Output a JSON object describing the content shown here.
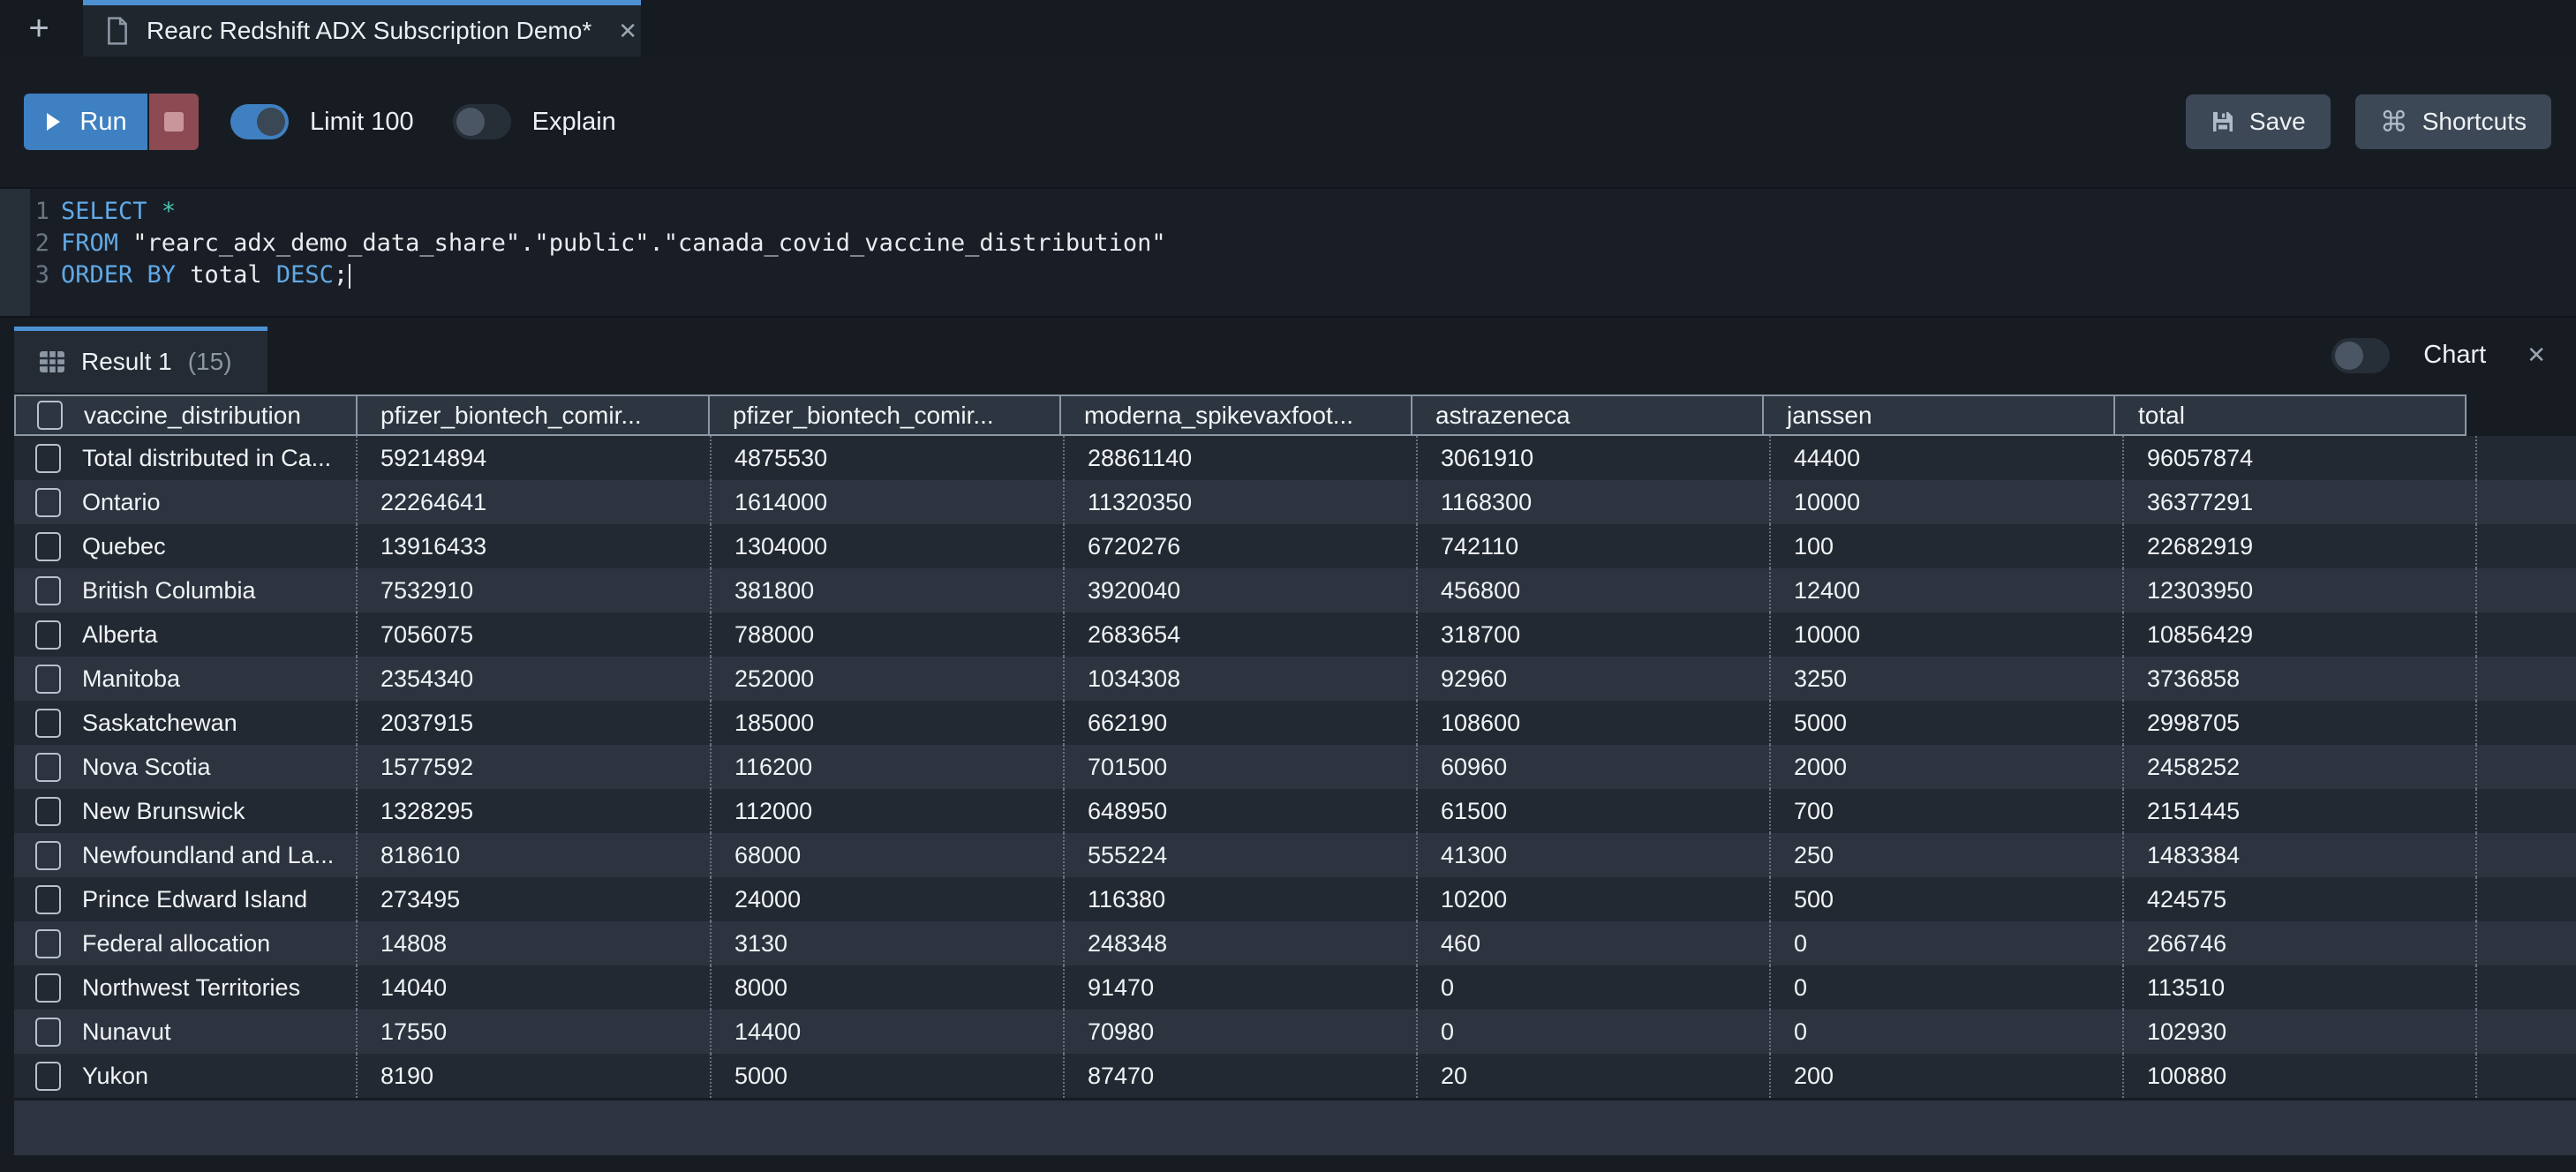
{
  "tab_bar": {
    "new_tab_icon": "+",
    "tab": {
      "title": "Rearc Redshift ADX Subscription Demo*",
      "close": "✕"
    }
  },
  "toolbar": {
    "run_label": "Run",
    "limit_label": "Limit 100",
    "explain_label": "Explain",
    "save_label": "Save",
    "shortcuts_label": "Shortcuts",
    "limit_on": true,
    "explain_on": false
  },
  "editor": {
    "lines": [
      {
        "number": "1",
        "segments": [
          {
            "type": "keyword",
            "text": "SELECT"
          },
          {
            "type": "plain",
            "text": " "
          },
          {
            "type": "operator",
            "text": "*"
          }
        ],
        "cursor": false
      },
      {
        "number": "2",
        "segments": [
          {
            "type": "keyword",
            "text": "FROM"
          },
          {
            "type": "plain",
            "text": " \"rearc_adx_demo_data_share\".\"public\".\"canada_covid_vaccine_distribution\""
          }
        ],
        "cursor": false
      },
      {
        "number": "3",
        "segments": [
          {
            "type": "keyword",
            "text": "ORDER BY"
          },
          {
            "type": "plain",
            "text": " total "
          },
          {
            "type": "keyword",
            "text": "DESC"
          },
          {
            "type": "plain",
            "text": ";"
          }
        ],
        "cursor": true
      }
    ]
  },
  "results": {
    "tab_label": "Result 1",
    "tab_count": "(15)",
    "chart_label": "Chart",
    "chart_on": false,
    "close_icon": "✕",
    "table": {
      "columns": [
        "vaccine_distribution",
        "pfizer_biontech_comir...",
        "pfizer_biontech_comir...",
        "moderna_spikevaxfoot...",
        "astrazeneca",
        "janssen",
        "total"
      ],
      "rows": [
        [
          "Total distributed in Ca...",
          "59214894",
          "4875530",
          "28861140",
          "3061910",
          "44400",
          "96057874"
        ],
        [
          "Ontario",
          "22264641",
          "1614000",
          "11320350",
          "1168300",
          "10000",
          "36377291"
        ],
        [
          "Quebec",
          "13916433",
          "1304000",
          "6720276",
          "742110",
          "100",
          "22682919"
        ],
        [
          "British Columbia",
          "7532910",
          "381800",
          "3920040",
          "456800",
          "12400",
          "12303950"
        ],
        [
          "Alberta",
          "7056075",
          "788000",
          "2683654",
          "318700",
          "10000",
          "10856429"
        ],
        [
          "Manitoba",
          "2354340",
          "252000",
          "1034308",
          "92960",
          "3250",
          "3736858"
        ],
        [
          "Saskatchewan",
          "2037915",
          "185000",
          "662190",
          "108600",
          "5000",
          "2998705"
        ],
        [
          "Nova Scotia",
          "1577592",
          "116200",
          "701500",
          "60960",
          "2000",
          "2458252"
        ],
        [
          "New Brunswick",
          "1328295",
          "112000",
          "648950",
          "61500",
          "700",
          "2151445"
        ],
        [
          "Newfoundland and La...",
          "818610",
          "68000",
          "555224",
          "41300",
          "250",
          "1483384"
        ],
        [
          "Prince Edward Island",
          "273495",
          "24000",
          "116380",
          "10200",
          "500",
          "424575"
        ],
        [
          "Federal allocation",
          "14808",
          "3130",
          "248348",
          "460",
          "0",
          "266746"
        ],
        [
          "Northwest Territories",
          "14040",
          "8000",
          "91470",
          "0",
          "0",
          "113510"
        ],
        [
          "Nunavut",
          "17550",
          "14400",
          "70980",
          "0",
          "0",
          "102930"
        ],
        [
          "Yukon",
          "8190",
          "5000",
          "87470",
          "20",
          "200",
          "100880"
        ]
      ]
    }
  },
  "colors": {
    "accent_blue": "#4C92D3",
    "run_blue": "#3E80C2",
    "stop_red": "#8C4A52",
    "row_odd": "#232932",
    "row_even": "#2D3440",
    "keyword": "#61A9E6",
    "operator_star": "#45C5AE"
  }
}
